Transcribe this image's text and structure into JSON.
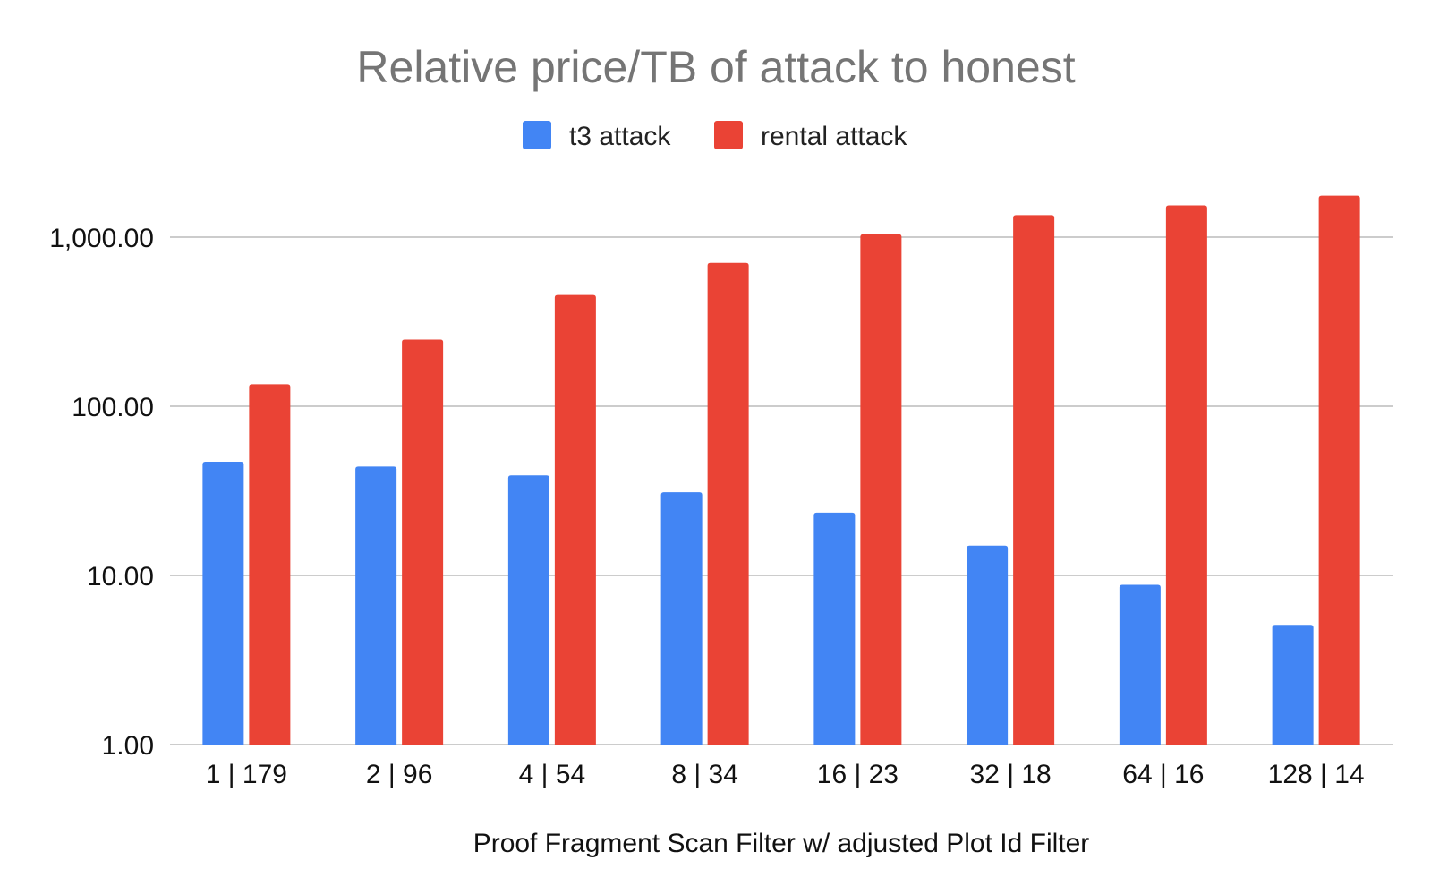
{
  "chart_data": {
    "type": "bar",
    "title": "Relative price/TB of attack to honest",
    "xlabel": "Proof Fragment Scan Filter w/ adjusted Plot Id Filter",
    "ylabel": "",
    "y_scale": "log",
    "ylim": [
      1,
      2000
    ],
    "y_ticks": [
      1,
      10,
      100,
      1000
    ],
    "y_tick_labels": [
      "1.00",
      "10.00",
      "100.00",
      "1,000.00"
    ],
    "grid": true,
    "legend_position": "top",
    "categories": [
      "1 | 179",
      "2 | 96",
      "4 | 54",
      "8 | 34",
      "16 | 23",
      "32 | 18",
      "64 | 16",
      "128 | 14"
    ],
    "series": [
      {
        "name": "t3 attack",
        "color": "#4285f4",
        "values": [
          47,
          44,
          39,
          31,
          23.5,
          15,
          8.8,
          5.1
        ]
      },
      {
        "name": "rental attack",
        "color": "#ea4335",
        "values": [
          135,
          248,
          455,
          705,
          1040,
          1350,
          1540,
          1760
        ]
      }
    ]
  }
}
